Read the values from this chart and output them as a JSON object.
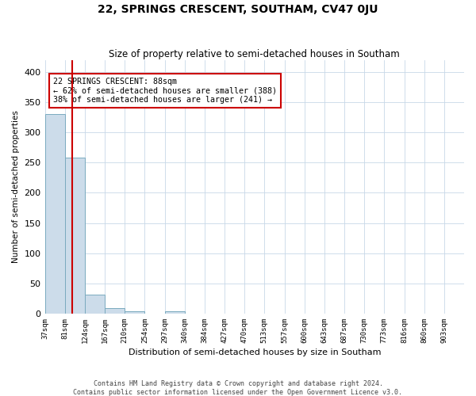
{
  "title": "22, SPRINGS CRESCENT, SOUTHAM, CV47 0JU",
  "subtitle": "Size of property relative to semi-detached houses in Southam",
  "xlabel": "Distribution of semi-detached houses by size in Southam",
  "ylabel": "Number of semi-detached properties",
  "footer1": "Contains HM Land Registry data © Crown copyright and database right 2024.",
  "footer2": "Contains public sector information licensed under the Open Government Licence v3.0.",
  "annotation_title": "22 SPRINGS CRESCENT: 88sqm",
  "annotation_line1": "← 62% of semi-detached houses are smaller (388)",
  "annotation_line2": "38% of semi-detached houses are larger (241) →",
  "property_size_bin": 1.35,
  "categories": [
    "37sqm",
    "81sqm",
    "124sqm",
    "167sqm",
    "210sqm",
    "254sqm",
    "297sqm",
    "340sqm",
    "384sqm",
    "427sqm",
    "470sqm",
    "513sqm",
    "557sqm",
    "600sqm",
    "643sqm",
    "687sqm",
    "730sqm",
    "773sqm",
    "816sqm",
    "860sqm",
    "903sqm"
  ],
  "bar_heights": [
    330,
    258,
    31,
    9,
    4,
    0,
    4,
    0,
    0,
    0,
    0,
    0,
    0,
    0,
    0,
    0,
    0,
    0,
    0,
    0,
    0
  ],
  "bar_color": "#ccdcea",
  "bar_edge_color": "#7aaabf",
  "grid_color": "#c8d8e8",
  "background_color": "#ffffff",
  "red_line_color": "#cc0000",
  "annotation_box_color": "#cc0000",
  "ylim": [
    0,
    420
  ],
  "yticks": [
    0,
    50,
    100,
    150,
    200,
    250,
    300,
    350,
    400
  ]
}
